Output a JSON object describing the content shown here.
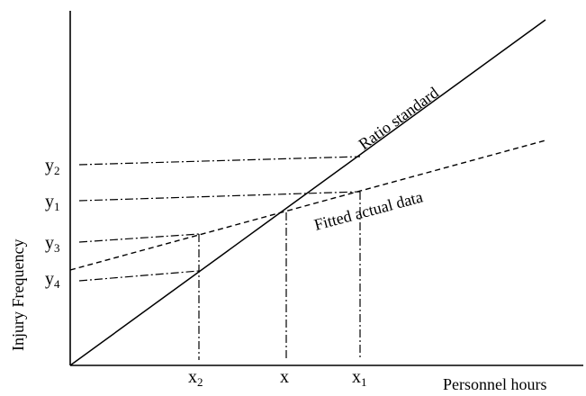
{
  "axes": {
    "x_title": "Personnel hours",
    "y_title": "Injury Frequency"
  },
  "curves": {
    "ratio_standard": "Ratio standard",
    "fitted_actual": "Fitted actual data"
  },
  "x_ticks": [
    {
      "base": "x",
      "sub": "2"
    },
    {
      "base": "x",
      "sub": ""
    },
    {
      "base": "x",
      "sub": "1"
    }
  ],
  "y_ticks": [
    {
      "base": "y",
      "sub": "2"
    },
    {
      "base": "y",
      "sub": "1"
    },
    {
      "base": "y",
      "sub": "3"
    },
    {
      "base": "y",
      "sub": "4"
    }
  ],
  "colors": {
    "ink": "#000000",
    "background": "#ffffff"
  }
}
